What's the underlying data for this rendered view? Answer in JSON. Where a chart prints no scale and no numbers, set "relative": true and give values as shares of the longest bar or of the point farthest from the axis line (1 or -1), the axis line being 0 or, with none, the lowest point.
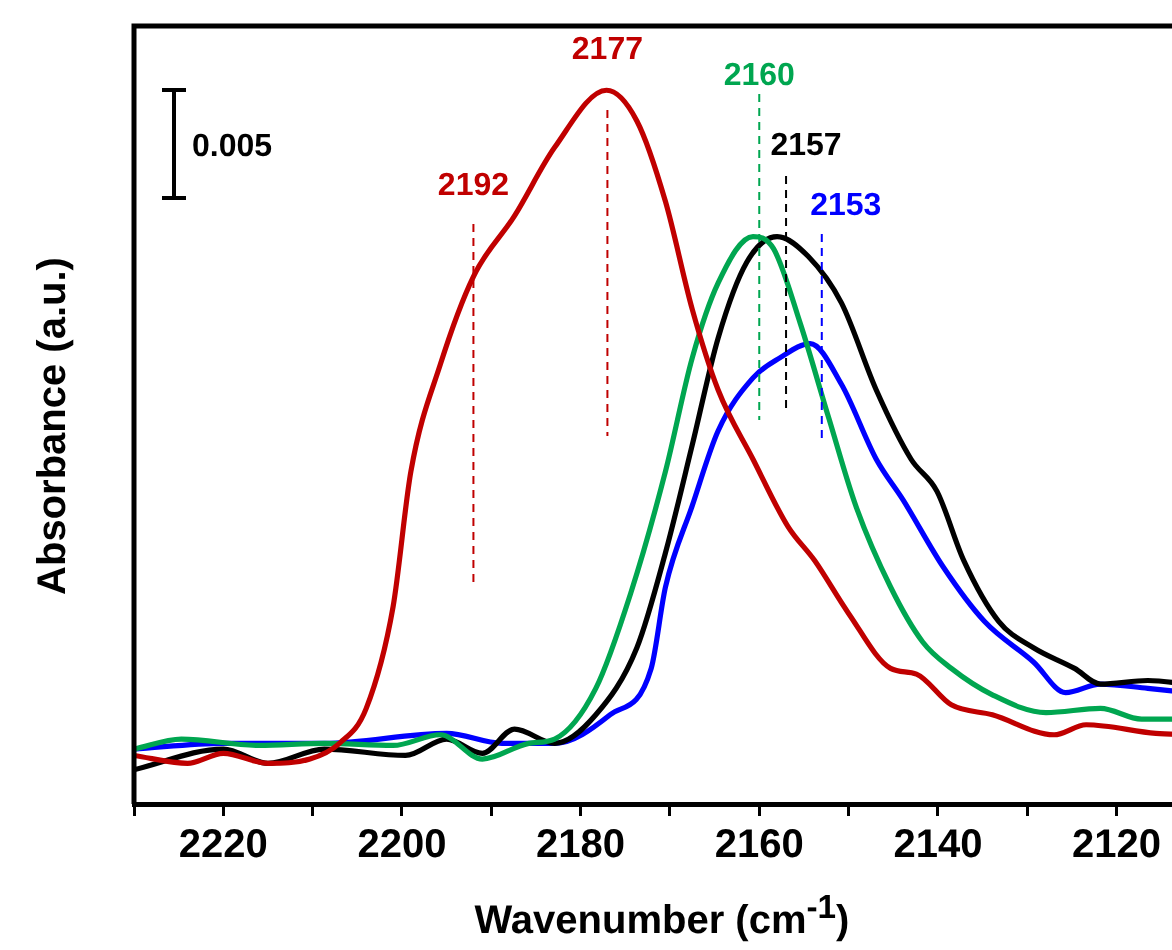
{
  "chart_data": {
    "type": "line",
    "xlabel": "Wavenumber (cm$^{-1}$)",
    "ylabel": "Absorbance (a.u.)",
    "relative": true,
    "xlim": [
      2230,
      2112
    ],
    "xticks": [
      {
        "value": 2230,
        "label": null
      },
      2220,
      {
        "value": 2210,
        "label": null
      },
      2200,
      {
        "value": 2190,
        "label": null
      },
      2180,
      {
        "value": 2170,
        "label": null
      },
      2160,
      {
        "value": 2150,
        "label": null
      },
      2140,
      {
        "value": 2130,
        "label": null
      },
      2120
    ],
    "tick_labels": "x",
    "grid": false,
    "legend": false,
    "marker": "none",
    "line_style": "solid",
    "series": [
      {
        "color": "#c00000",
        "x": [
          2230,
          2224,
          2220,
          2215,
          2210.3,
          2207,
          2204,
          2201,
          2199,
          2195.7,
          2192,
          2187.4,
          2182.9,
          2177.1,
          2173.7,
          2170.5,
          2167.5,
          2164.6,
          2160.7,
          2156.8,
          2153.8,
          2150,
          2145.3,
          2142.4,
          2138.5,
          2133.9,
          2127,
          2123.4,
          2115.6,
          2112
        ],
        "values": [
          0.068,
          0.057,
          0.071,
          0.057,
          0.063,
          0.085,
          0.134,
          0.276,
          0.466,
          0.616,
          0.739,
          0.824,
          0.92,
          1,
          0.957,
          0.844,
          0.693,
          0.58,
          0.483,
          0.389,
          0.341,
          0.267,
          0.19,
          0.182,
          0.139,
          0.125,
          0.097,
          0.111,
          0.099,
          0.097
        ]
      },
      {
        "color": "#00a650",
        "x": [
          2230,
          2224.7,
          2216,
          2208.7,
          2201,
          2195.7,
          2191,
          2185.8,
          2182.9,
          2178.3,
          2174.4,
          2170.5,
          2167.5,
          2164.6,
          2160.7,
          2158.4,
          2155.4,
          2152.2,
          2149.2,
          2145.3,
          2141.7,
          2138.5,
          2133.9,
          2127.9,
          2121.8,
          2117.2,
          2112
        ],
        "values": [
          0.077,
          0.091,
          0.082,
          0.085,
          0.082,
          0.097,
          0.063,
          0.085,
          0.091,
          0.162,
          0.295,
          0.466,
          0.625,
          0.73,
          0.795,
          0.778,
          0.673,
          0.54,
          0.418,
          0.304,
          0.227,
          0.19,
          0.153,
          0.128,
          0.134,
          0.119,
          0.119
        ]
      },
      {
        "color": "#000000",
        "x": [
          2230,
          2220,
          2215,
          2208.7,
          2199.6,
          2195,
          2191,
          2187.4,
          2182.9,
          2178.3,
          2173.7,
          2170.5,
          2167.5,
          2164.6,
          2161.4,
          2158,
          2154.5,
          2150.8,
          2146.9,
          2143,
          2140.1,
          2137.1,
          2133.2,
          2129.3,
          2124.7,
          2121.8,
          2116.5,
          2112
        ],
        "values": [
          0.048,
          0.077,
          0.057,
          0.077,
          0.068,
          0.091,
          0.071,
          0.105,
          0.085,
          0.125,
          0.219,
          0.352,
          0.503,
          0.653,
          0.759,
          0.795,
          0.767,
          0.702,
          0.58,
          0.483,
          0.438,
          0.341,
          0.256,
          0.219,
          0.19,
          0.168,
          0.173,
          0.168
        ]
      },
      {
        "color": "#0000ff",
        "x": [
          2230,
          2220,
          2208.7,
          2195,
          2188.8,
          2182.9,
          2176.7,
          2172.1,
          2170.5,
          2167.5,
          2164.6,
          2160.7,
          2157.7,
          2154.3,
          2150.8,
          2146.9,
          2143.9,
          2139.4,
          2134.8,
          2129.3,
          2125.7,
          2121.8,
          2116.5,
          2112
        ],
        "values": [
          0.077,
          0.085,
          0.085,
          0.099,
          0.085,
          0.085,
          0.125,
          0.19,
          0.304,
          0.418,
          0.523,
          0.597,
          0.625,
          0.645,
          0.588,
          0.483,
          0.426,
          0.332,
          0.256,
          0.199,
          0.156,
          0.168,
          0.162,
          0.156
        ]
      }
    ],
    "annotations": [
      "0.005"
    ],
    "ref_lines": [
      {
        "axis": "x",
        "value": 2192,
        "label": "2192",
        "color": "#c00000",
        "line_style": "dashed"
      },
      {
        "axis": "x",
        "value": 2177,
        "label": "2177",
        "color": "#c00000",
        "line_style": "dashed"
      },
      {
        "axis": "x",
        "value": 2160,
        "label": "2160",
        "color": "#00a650",
        "line_style": "dashed"
      },
      {
        "axis": "x",
        "value": 2157,
        "label": "2157",
        "color": "#000000",
        "line_style": "dashed"
      },
      {
        "axis": "x",
        "value": 2153,
        "label": "2153",
        "color": "#0000ff",
        "line_style": "dashed"
      }
    ]
  }
}
